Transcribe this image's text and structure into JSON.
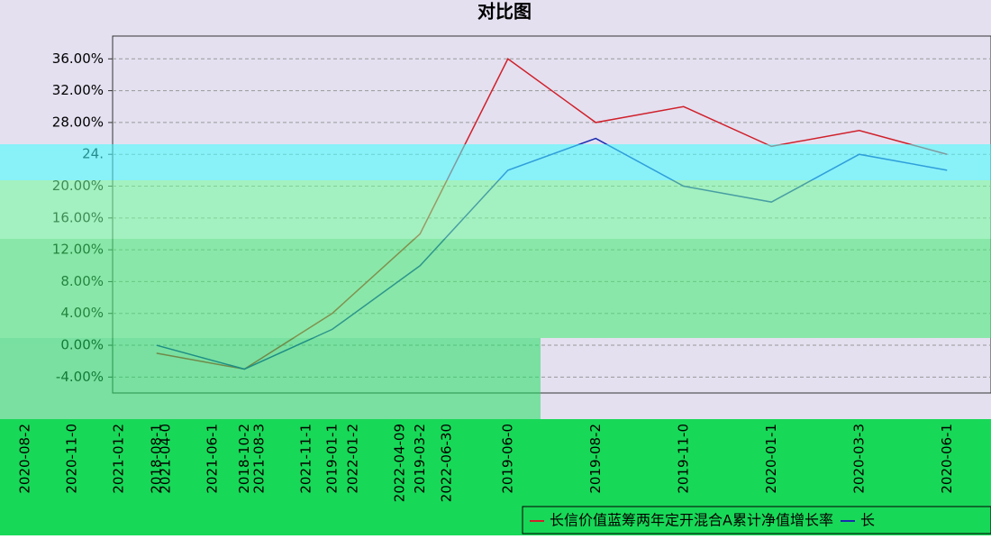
{
  "chart_data": {
    "type": "line",
    "title": "对比图",
    "categories": [
      "2018-08-1",
      "2018-10-2",
      "2019-01-1",
      "2019-03-2",
      "2019-06-0",
      "2019-08-2",
      "2019-11-0",
      "2020-01-1",
      "2020-03-3",
      "2020-06-1"
    ],
    "x2_categories": [
      "2020-08-2",
      "2020-11-0",
      "2021-01-2",
      "2021-04-0",
      "2021-06-1",
      "2021-08-3",
      "2021-11-1",
      "2022-01-2",
      "2022-04-09",
      "2022-06-30"
    ],
    "series": [
      {
        "name": "长信价值蓝筹两年定开混合A累计净值增长率",
        "color": "#d0202a",
        "values": [
          -1,
          -3,
          4,
          14,
          36,
          28,
          30,
          25,
          27,
          24
        ]
      },
      {
        "name": "长",
        "color": "#1a2ab0",
        "values": [
          0,
          -3,
          2,
          10,
          22,
          26,
          20,
          18,
          24,
          22
        ]
      }
    ],
    "ylim": [
      -6,
      40
    ],
    "yticks": [
      {
        "value": -4,
        "label": "-4.00%"
      },
      {
        "value": 0,
        "label": "0.00%"
      },
      {
        "value": 4,
        "label": "4.00%"
      },
      {
        "value": 8,
        "label": "8.00%"
      },
      {
        "value": 12,
        "label": "12.00%"
      },
      {
        "value": 16,
        "label": "16.00%"
      },
      {
        "value": 20,
        "label": "20.00%"
      },
      {
        "value": 24,
        "label": "24."
      },
      {
        "value": 28,
        "label": "28.00%"
      },
      {
        "value": 32,
        "label": "32.00%"
      },
      {
        "value": 36,
        "label": "36.00%"
      }
    ],
    "grid": true
  }
}
